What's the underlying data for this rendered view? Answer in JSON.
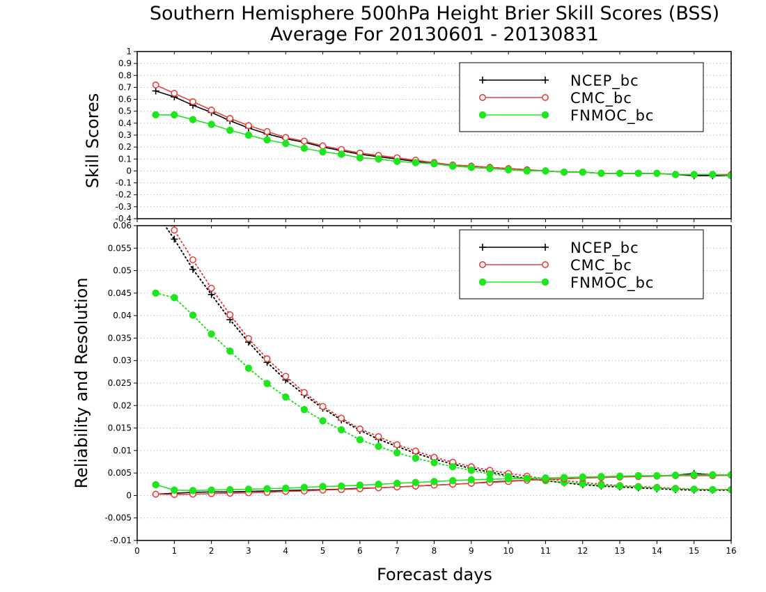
{
  "title": {
    "line1": "Southern Hemisphere 500hPa Height Brier Skill Scores (BSS)",
    "line2": "Average For 20130601 - 20130831"
  },
  "colors": {
    "NCEP_bc": "#000000",
    "CMC_bc": "#e8413c",
    "FNMOC_bc": "#1ee51e",
    "grid": "#aaaaaa",
    "frame": "#000000"
  },
  "legend_entries": [
    "NCEP_bc",
    "CMC_bc",
    "FNMOC_bc"
  ],
  "chart_data": [
    {
      "type": "line",
      "panel": "top",
      "ylabel": "Skill Scores",
      "xlim": [
        0,
        16
      ],
      "ylim": [
        -0.4,
        1
      ],
      "yticks": [
        "-0.4",
        "-0.3",
        "-0.2",
        "-0.1",
        "0",
        "0.1",
        "0.2",
        "0.3",
        "0.4",
        "0.5",
        "0.6",
        "0.7",
        "0.8",
        "0.9",
        "1"
      ],
      "grid": "horizontal dotted",
      "legend_position": "top-right",
      "x": [
        0.5,
        1,
        1.5,
        2,
        2.5,
        3,
        3.5,
        4,
        4.5,
        5,
        5.5,
        6,
        6.5,
        7,
        7.5,
        8,
        8.5,
        9,
        9.5,
        10,
        10.5,
        11,
        11.5,
        12,
        12.5,
        13,
        13.5,
        14,
        14.5,
        15,
        15.5,
        16
      ],
      "series": [
        {
          "name": "NCEP_bc",
          "marker": "plus",
          "style": "solid",
          "values": [
            0.67,
            0.62,
            0.55,
            0.49,
            0.42,
            0.36,
            0.31,
            0.27,
            0.24,
            0.2,
            0.17,
            0.14,
            0.12,
            0.1,
            0.08,
            0.06,
            0.05,
            0.04,
            0.03,
            0.02,
            0.01,
            0.0,
            -0.01,
            -0.01,
            -0.02,
            -0.02,
            -0.02,
            -0.02,
            -0.03,
            -0.04,
            -0.04,
            -0.04
          ]
        },
        {
          "name": "CMC_bc",
          "marker": "circle",
          "style": "solid",
          "values": [
            0.72,
            0.65,
            0.58,
            0.51,
            0.44,
            0.38,
            0.33,
            0.28,
            0.25,
            0.21,
            0.18,
            0.15,
            0.13,
            0.11,
            0.09,
            0.07,
            0.05,
            0.04,
            0.03,
            0.02,
            0.01,
            0.0,
            -0.01,
            -0.01,
            -0.02,
            -0.02,
            -0.02,
            -0.02,
            -0.03,
            -0.03,
            -0.03,
            -0.03
          ]
        },
        {
          "name": "FNMOC_bc",
          "marker": "dot",
          "style": "solid",
          "values": [
            0.47,
            0.47,
            0.43,
            0.39,
            0.34,
            0.3,
            0.26,
            0.23,
            0.19,
            0.16,
            0.14,
            0.11,
            0.1,
            0.08,
            0.07,
            0.06,
            0.04,
            0.03,
            0.02,
            0.01,
            0.0,
            0.0,
            -0.01,
            -0.01,
            -0.02,
            -0.02,
            -0.02,
            -0.02,
            -0.03,
            -0.03,
            -0.03,
            -0.04
          ]
        }
      ]
    },
    {
      "type": "line",
      "panel": "bottom",
      "ylabel": "Reliability and Resolution",
      "xlabel": "Forecast days",
      "xlim": [
        0,
        16
      ],
      "ylim": [
        -0.01,
        0.06
      ],
      "xticks": [
        "0",
        "1",
        "2",
        "3",
        "4",
        "5",
        "6",
        "7",
        "8",
        "9",
        "10",
        "11",
        "12",
        "13",
        "14",
        "15",
        "16"
      ],
      "yticks": [
        "-0.01",
        "-0.005",
        "0",
        "0.005",
        "0.01",
        "0.015",
        "0.02",
        "0.025",
        "0.03",
        "0.035",
        "0.04",
        "0.045",
        "0.05",
        "0.055",
        "0.06"
      ],
      "grid": "horizontal dotted",
      "legend_position": "top-right",
      "x": [
        0.5,
        1,
        1.5,
        2,
        2.5,
        3,
        3.5,
        4,
        4.5,
        5,
        5.5,
        6,
        6.5,
        7,
        7.5,
        8,
        8.5,
        9,
        9.5,
        10,
        10.5,
        11,
        11.5,
        12,
        12.5,
        13,
        13.5,
        14,
        14.5,
        15,
        15.5,
        16
      ],
      "series": [
        {
          "name": "NCEP_bc resolution",
          "color_key": "NCEP_bc",
          "marker": "plus",
          "style": "dotted",
          "values": [
            0.063,
            0.057,
            0.0503,
            0.0447,
            0.0391,
            0.0341,
            0.0296,
            0.0257,
            0.0224,
            0.0194,
            0.0168,
            0.0145,
            0.0125,
            0.0109,
            0.0094,
            0.0081,
            0.007,
            0.006,
            0.0052,
            0.0044,
            0.0038,
            0.0033,
            0.0028,
            0.0024,
            0.0021,
            0.0019,
            0.0017,
            0.0015,
            0.0013,
            0.0012,
            0.0012,
            0.0012
          ]
        },
        {
          "name": "CMC_bc resolution",
          "color_key": "CMC_bc",
          "marker": "circle",
          "style": "dotted",
          "values": [
            0.066,
            0.059,
            0.0524,
            0.0461,
            0.0402,
            0.0349,
            0.0304,
            0.0265,
            0.0229,
            0.0198,
            0.0172,
            0.0148,
            0.0131,
            0.0113,
            0.0099,
            0.0085,
            0.0074,
            0.0064,
            0.0056,
            0.0049,
            0.0043,
            0.0037,
            0.0033,
            0.0029,
            0.0025,
            0.0022,
            0.002,
            0.0018,
            0.0016,
            0.0014,
            0.0013,
            0.0013
          ]
        },
        {
          "name": "FNMOC_bc resolution",
          "color_key": "FNMOC_bc",
          "marker": "dot",
          "style": "dotted",
          "values": [
            0.045,
            0.044,
            0.0401,
            0.0359,
            0.0321,
            0.0283,
            0.0249,
            0.0219,
            0.0191,
            0.0166,
            0.0146,
            0.0124,
            0.0109,
            0.0095,
            0.0083,
            0.0073,
            0.0064,
            0.0056,
            0.0048,
            0.0042,
            0.0037,
            0.0033,
            0.0029,
            0.0026,
            0.0023,
            0.0021,
            0.0019,
            0.0017,
            0.0015,
            0.0014,
            0.0013,
            0.0013
          ]
        },
        {
          "name": "NCEP_bc reliability",
          "color_key": "NCEP_bc",
          "marker": "plus",
          "style": "solid",
          "values": [
            0.0003,
            0.0005,
            0.0007,
            0.0008,
            0.0008,
            0.0009,
            0.001,
            0.0011,
            0.0012,
            0.0013,
            0.0014,
            0.0016,
            0.0017,
            0.0019,
            0.0021,
            0.0023,
            0.0025,
            0.0027,
            0.003,
            0.0032,
            0.0034,
            0.0036,
            0.0037,
            0.0039,
            0.004,
            0.0042,
            0.0043,
            0.0044,
            0.0045,
            0.0049,
            0.0046,
            0.0045
          ]
        },
        {
          "name": "CMC_bc reliability",
          "color_key": "CMC_bc",
          "marker": "circle",
          "style": "solid",
          "values": [
            0.0003,
            0.0002,
            0.0003,
            0.0004,
            0.0005,
            0.0006,
            0.0007,
            0.0009,
            0.001,
            0.0012,
            0.0013,
            0.0015,
            0.0017,
            0.0019,
            0.0021,
            0.0023,
            0.0025,
            0.0027,
            0.0029,
            0.0031,
            0.0034,
            0.0036,
            0.0037,
            0.0039,
            0.004,
            0.0041,
            0.0042,
            0.0043,
            0.0044,
            0.0044,
            0.0044,
            0.0045
          ]
        },
        {
          "name": "FNMOC_bc reliability",
          "color_key": "FNMOC_bc",
          "marker": "dot",
          "style": "solid",
          "values": [
            0.0024,
            0.0012,
            0.0011,
            0.0012,
            0.0013,
            0.0014,
            0.0015,
            0.0016,
            0.0018,
            0.002,
            0.0021,
            0.0023,
            0.0025,
            0.0027,
            0.0029,
            0.0031,
            0.0033,
            0.0035,
            0.0036,
            0.0037,
            0.0038,
            0.0039,
            0.004,
            0.0041,
            0.0042,
            0.0043,
            0.0044,
            0.0044,
            0.0045,
            0.0046,
            0.0046,
            0.0046
          ]
        }
      ]
    }
  ]
}
